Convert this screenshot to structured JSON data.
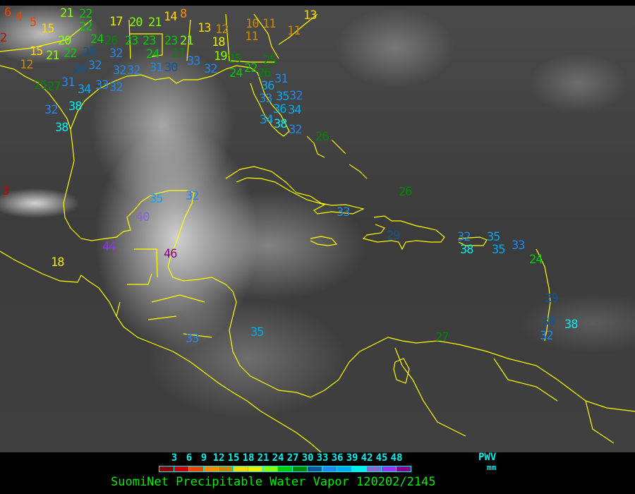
{
  "caption": "SuomiNet Precipitable Water Vapor 120202/2145",
  "legend": {
    "unit_top": "PWV",
    "unit_bottom": "mm",
    "ticks": [
      "3",
      "6",
      "9",
      "12",
      "15",
      "18",
      "21",
      "24",
      "27",
      "30",
      "33",
      "36",
      "39",
      "42",
      "45",
      "48"
    ],
    "colors": [
      "#8b0000",
      "#cc0000",
      "#ee4400",
      "#ff8800",
      "#cc8800",
      "#ffd700",
      "#eeee00",
      "#88ff00",
      "#00cc00",
      "#008800",
      "#115599",
      "#2288ee",
      "#00aaee",
      "#00eeee",
      "#8866cc",
      "#9933ee",
      "#880088"
    ]
  },
  "coastline_color": "#ffff00",
  "stations": [
    "6",
    "4",
    "5",
    "2",
    "15",
    "21",
    "22",
    "17",
    "20",
    "21",
    "14",
    "8",
    "13",
    "12",
    "18",
    "19",
    "10",
    "11",
    "11",
    "11",
    "13",
    "20",
    "15",
    "21",
    "22",
    "29",
    "12",
    "30",
    "32",
    "32",
    "26",
    "24",
    "22",
    "23",
    "23",
    "24",
    "23",
    "21",
    "27",
    "33",
    "32",
    "31",
    "30",
    "32",
    "32",
    "25",
    "27",
    "31",
    "34",
    "33",
    "32",
    "32",
    "38",
    "38",
    "25",
    "24",
    "22",
    "26",
    "25",
    "36",
    "31",
    "33",
    "35",
    "32",
    "36",
    "34",
    "34",
    "38",
    "32",
    "26",
    "3",
    "18",
    "44",
    "46",
    "40",
    "35",
    "32",
    "33",
    "26",
    "29",
    "32",
    "38",
    "35",
    "35",
    "33",
    "24",
    "29",
    "30",
    "38",
    "32",
    "33",
    "35",
    "27"
  ]
}
